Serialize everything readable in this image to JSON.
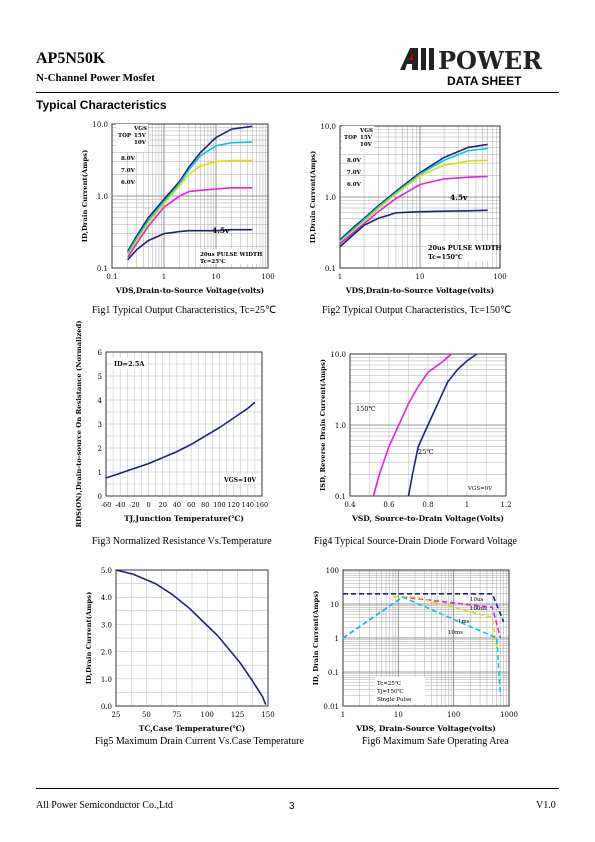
{
  "header": {
    "part_number": "AP5N50K",
    "subtitle": "N-Channel Power Mosfet",
    "logo_text": "AllPOWER",
    "doc_type": "DATA SHEET"
  },
  "section_title": "Typical Characteristics",
  "figures": [
    {
      "caption": "Fig1 Typical Output Characteristics, Tc=25℃"
    },
    {
      "caption": "Fig2 Typical Output Characteristics, Tc=150℃"
    },
    {
      "caption": "Fig3 Normalized Resistance Vs.Temperature"
    },
    {
      "caption": "Fig4 Typical Source-Drain Diode Forward Voltage"
    },
    {
      "caption": "Fig5 Maximum Drain Current Vs.Case Temperature"
    },
    {
      "caption": "Fig6 Maximum Safe Operating Area"
    }
  ],
  "footer": {
    "company": "All Power Semiconductor Co.,Ltd",
    "page": "3",
    "version": "V1.0"
  },
  "chart_data": [
    {
      "type": "line",
      "x_scale": "log",
      "y_scale": "log",
      "xlim": [
        0.1,
        100
      ],
      "ylim": [
        0.1,
        10
      ],
      "xticks": [
        "0.1",
        "1",
        "10",
        "100"
      ],
      "yticks": [
        "0.1",
        "1.0",
        "10.0"
      ],
      "xlabel": "VDS,Drain-to-Source Voltage(volts)",
      "ylabel": "ID,Drain Current(Amps)",
      "legend": {
        "header": [
          "VGS",
          "TOP",
          "15V",
          "10V"
        ],
        "items": [
          "8.0V",
          "7.0V",
          "6.0V"
        ]
      },
      "annotations": [
        "4.5v",
        "20us PULSE WIDTH",
        "Tc=25℃"
      ],
      "series": [
        {
          "color": "#1a237e",
          "x": [
            0.2,
            0.3,
            0.5,
            1,
            2,
            3,
            5,
            10,
            20,
            50
          ],
          "y": [
            0.17,
            0.28,
            0.5,
            0.9,
            1.6,
            2.5,
            4,
            6.5,
            8.5,
            9.3
          ]
        },
        {
          "color": "#00c8e0",
          "x": [
            0.2,
            0.3,
            0.5,
            1,
            2,
            3,
            5,
            10,
            20,
            50
          ],
          "y": [
            0.16,
            0.26,
            0.46,
            0.82,
            1.5,
            2.3,
            3.6,
            5,
            5.5,
            5.6
          ]
        },
        {
          "color": "#e0e000",
          "x": [
            0.2,
            0.3,
            0.5,
            1,
            2,
            3,
            5,
            10,
            20,
            50
          ],
          "y": [
            0.15,
            0.24,
            0.42,
            0.78,
            1.4,
            2,
            2.6,
            3,
            3.1,
            3.1
          ]
        },
        {
          "color": "#e020e0",
          "x": [
            0.2,
            0.3,
            0.5,
            1,
            2,
            3,
            5,
            10,
            20,
            50
          ],
          "y": [
            0.14,
            0.22,
            0.38,
            0.7,
            1,
            1.15,
            1.2,
            1.25,
            1.3,
            1.3
          ]
        },
        {
          "color": "#1a237e",
          "x": [
            0.2,
            0.3,
            0.5,
            1,
            2,
            3,
            5,
            10,
            20,
            50
          ],
          "y": [
            0.13,
            0.18,
            0.24,
            0.3,
            0.32,
            0.33,
            0.33,
            0.33,
            0.34,
            0.34
          ]
        }
      ]
    },
    {
      "type": "line",
      "x_scale": "log",
      "y_scale": "log",
      "xlim": [
        1,
        100
      ],
      "ylim": [
        0.1,
        10
      ],
      "xticks": [
        "1",
        "10",
        "100"
      ],
      "yticks": [
        "0.1",
        "1.0",
        "10.0"
      ],
      "xlabel": "VDS,Drain-to-Source Voltage(volts)",
      "ylabel": "ID,Drain Current(Amps)",
      "legend": {
        "header": [
          "VGS",
          "TOP",
          "15V",
          "10V"
        ],
        "items": [
          "8.0V",
          "7.0V",
          "6.0V"
        ]
      },
      "annotations": [
        "4.5v",
        "20us PULSE WIDTH",
        "Tc=150℃"
      ],
      "series": [
        {
          "color": "#1a237e",
          "x": [
            1,
            1.5,
            2,
            3,
            5,
            10,
            20,
            40,
            70
          ],
          "y": [
            0.25,
            0.38,
            0.5,
            0.75,
            1.2,
            2.2,
            3.6,
            5,
            5.5
          ]
        },
        {
          "color": "#00c8e0",
          "x": [
            1,
            1.5,
            2,
            3,
            5,
            10,
            20,
            40,
            70
          ],
          "y": [
            0.24,
            0.36,
            0.48,
            0.72,
            1.15,
            2.1,
            3.3,
            4.5,
            4.8
          ]
        },
        {
          "color": "#e0e000",
          "x": [
            1,
            1.5,
            2,
            3,
            5,
            10,
            20,
            40,
            70
          ],
          "y": [
            0.23,
            0.34,
            0.45,
            0.68,
            1.1,
            2,
            2.8,
            3.2,
            3.3
          ]
        },
        {
          "color": "#e020e0",
          "x": [
            1,
            1.5,
            2,
            3,
            5,
            10,
            20,
            40,
            70
          ],
          "y": [
            0.22,
            0.32,
            0.42,
            0.62,
            0.95,
            1.5,
            1.8,
            1.9,
            1.95
          ]
        },
        {
          "color": "#1a237e",
          "x": [
            1,
            1.5,
            2,
            3,
            5,
            10,
            20,
            40,
            70
          ],
          "y": [
            0.2,
            0.3,
            0.4,
            0.5,
            0.6,
            0.62,
            0.63,
            0.64,
            0.65
          ]
        }
      ]
    },
    {
      "type": "line",
      "xlim": [
        -60,
        160
      ],
      "ylim": [
        0,
        6
      ],
      "xticks": [
        "-60",
        "-40",
        "-20",
        "0",
        "20",
        "40",
        "60",
        "80",
        "100",
        "120",
        "140",
        "160"
      ],
      "yticks": [
        "0",
        "1",
        "2",
        "3",
        "4",
        "5",
        "6"
      ],
      "xlabel": "TJ,Junction Temperature(℃)",
      "ylabel": "RDS(ON),Drain-to-source On Resistance (Normalized)",
      "annotations": [
        "ID=2.5A",
        "VGS=10V"
      ],
      "series": [
        {
          "color": "#1a237e",
          "x": [
            -60,
            -40,
            -20,
            0,
            20,
            40,
            60,
            80,
            100,
            120,
            140,
            150
          ],
          "y": [
            0.75,
            0.95,
            1.15,
            1.35,
            1.6,
            1.85,
            2.15,
            2.5,
            2.85,
            3.25,
            3.65,
            3.9
          ]
        }
      ]
    },
    {
      "type": "line",
      "y_scale": "log",
      "xlim": [
        0.4,
        1.2
      ],
      "ylim": [
        0.1,
        10
      ],
      "xticks": [
        "0.4",
        "0.6",
        "0.8",
        "1",
        "1.2"
      ],
      "yticks": [
        "0.1",
        "1.0",
        "10.0"
      ],
      "xlabel": "VSD, Source-to-Drain Voltage(Volts)",
      "ylabel": "ISD, Reverse Drain Current(Amps)",
      "annotations": [
        "VGS=0V"
      ],
      "series": [
        {
          "name": "150℃",
          "color": "#e020e0",
          "x": [
            0.52,
            0.55,
            0.6,
            0.65,
            0.7,
            0.75,
            0.8,
            0.88,
            0.92
          ],
          "y": [
            0.1,
            0.2,
            0.5,
            1,
            2,
            3.5,
            5.5,
            8,
            10
          ]
        },
        {
          "name": "25℃",
          "color": "#1a237e",
          "x": [
            0.7,
            0.72,
            0.75,
            0.8,
            0.85,
            0.9,
            0.95,
            1,
            1.05
          ],
          "y": [
            0.1,
            0.2,
            0.5,
            1,
            2,
            4,
            6,
            8,
            10
          ]
        }
      ]
    },
    {
      "type": "line",
      "xlim": [
        25,
        160
      ],
      "ylim": [
        0,
        5
      ],
      "xticks": [
        "25",
        "50",
        "75",
        "100",
        "125",
        "150"
      ],
      "yticks": [
        "0.0",
        "1.0",
        "2.0",
        "3.0",
        "4.0",
        "5.0"
      ],
      "xlabel": "TC,Case Temperature(℃)",
      "ylabel": "ID,Drain Current(Amps)",
      "series": [
        {
          "color": "#1a237e",
          "x": [
            25,
            40,
            60,
            75,
            90,
            100,
            115,
            125,
            135,
            145,
            155,
            158
          ],
          "y": [
            5,
            4.85,
            4.5,
            4.1,
            3.6,
            3.2,
            2.6,
            2.1,
            1.6,
            1,
            0.35,
            0.05
          ]
        }
      ]
    },
    {
      "type": "line",
      "x_scale": "log",
      "y_scale": "log",
      "xlim": [
        1,
        1000
      ],
      "ylim": [
        0.01,
        100
      ],
      "xticks": [
        "1",
        "10",
        "100",
        "1000"
      ],
      "yticks": [
        "0.01",
        "0.1",
        "1",
        "10",
        "100"
      ],
      "xlabel": "VDS, Drain-Source Voltage(volts)",
      "ylabel": "ID, Drain Current(Amps)",
      "annotations": [
        "10us",
        "100us",
        "1ms",
        "10ms",
        "Tc=25℃",
        "Tj=150℃",
        "Single Pulse"
      ],
      "series": [
        {
          "color": "#1a237e",
          "dashed": true,
          "x": [
            1,
            8,
            500,
            800
          ],
          "y": [
            20,
            20,
            20,
            3
          ]
        },
        {
          "color": "#e020e0",
          "dashed": true,
          "x": [
            1,
            12,
            500,
            700
          ],
          "y": [
            1,
            16,
            8,
            1
          ]
        },
        {
          "color": "#e0e000",
          "dashed": true,
          "x": [
            8,
            20,
            500,
            600
          ],
          "y": [
            16,
            16,
            4,
            0.5
          ]
        },
        {
          "color": "#00c8e0",
          "dashed": true,
          "x": [
            1,
            12,
            600,
            700
          ],
          "y": [
            1,
            16,
            1,
            0.02
          ]
        }
      ]
    }
  ]
}
